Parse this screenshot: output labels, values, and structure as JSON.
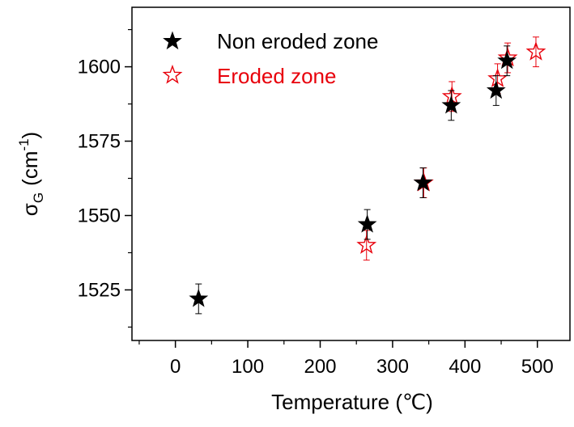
{
  "chart_data": {
    "type": "scatter",
    "xlabel": "Temperature (℃)",
    "ylabel": {
      "main": "σ",
      "subscript": "G",
      "unit": "(cm",
      "superscript": "-1",
      "close": ")"
    },
    "xlim": [
      -60,
      545
    ],
    "ylim": [
      1508,
      1620
    ],
    "xticks": [
      0,
      100,
      200,
      300,
      400,
      500
    ],
    "yticks": [
      1525,
      1550,
      1575,
      1600
    ],
    "xtick_labels": [
      "0",
      "100",
      "200",
      "300",
      "400",
      "500"
    ],
    "ytick_labels": [
      "1525",
      "1550",
      "1575",
      "1600"
    ],
    "grid": false,
    "legend_position": "top-left",
    "series": [
      {
        "name": "Non eroded zone",
        "marker": "filled-star",
        "color": "#000000",
        "points": [
          {
            "x": 32,
            "y": 1522,
            "err": 5
          },
          {
            "x": 265,
            "y": 1547,
            "err": 5
          },
          {
            "x": 342,
            "y": 1561,
            "err": 5
          },
          {
            "x": 381,
            "y": 1587,
            "err": 5
          },
          {
            "x": 443,
            "y": 1592,
            "err": 5
          },
          {
            "x": 458,
            "y": 1602,
            "err": 5
          }
        ]
      },
      {
        "name": "Eroded zone",
        "marker": "open-star",
        "color": "#e8000b",
        "points": [
          {
            "x": 264,
            "y": 1540,
            "err": 5
          },
          {
            "x": 343,
            "y": 1561,
            "err": 5
          },
          {
            "x": 382,
            "y": 1590,
            "err": 5
          },
          {
            "x": 445,
            "y": 1596,
            "err": 5
          },
          {
            "x": 459,
            "y": 1603,
            "err": 5
          },
          {
            "x": 498,
            "y": 1605,
            "err": 5
          }
        ]
      }
    ]
  }
}
